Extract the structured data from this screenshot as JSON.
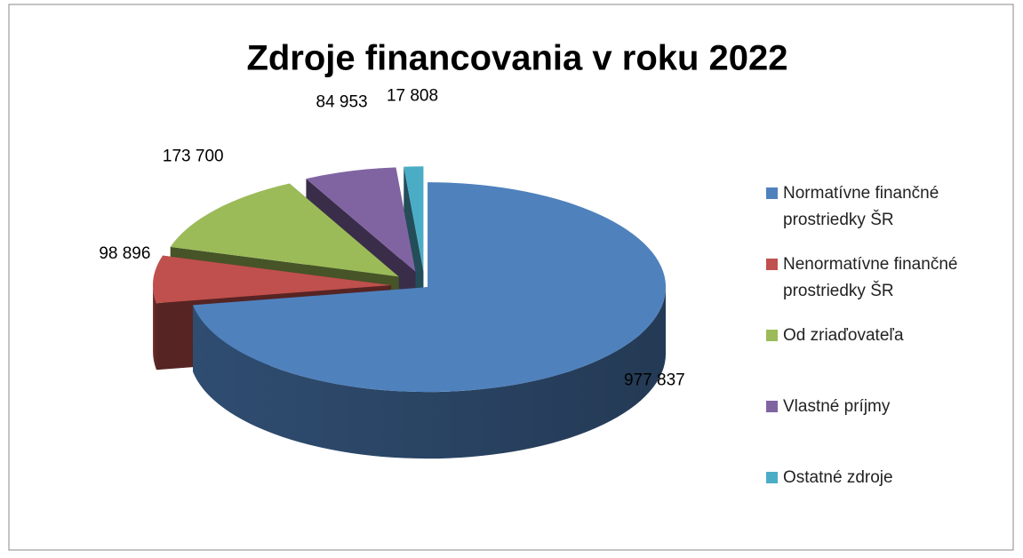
{
  "chart_data": {
    "type": "pie",
    "title": "Zdroje financovania v roku 2022",
    "categories": [
      "Normatívne finančné prostriedky ŠR",
      "Nenormatívne finančné prostriedky ŠR",
      "Od zriaďovateľa",
      "Vlastné príjmy",
      "Ostatné zdroje"
    ],
    "values": [
      977837,
      98896,
      173700,
      84953,
      17808
    ],
    "value_labels": [
      "977 837",
      "98 896",
      "173 700",
      "84 953",
      "17 808"
    ],
    "colors": [
      "#4f81bd",
      "#c0504d",
      "#9bbb59",
      "#8064a2",
      "#4bacc6"
    ],
    "legend": "right"
  }
}
